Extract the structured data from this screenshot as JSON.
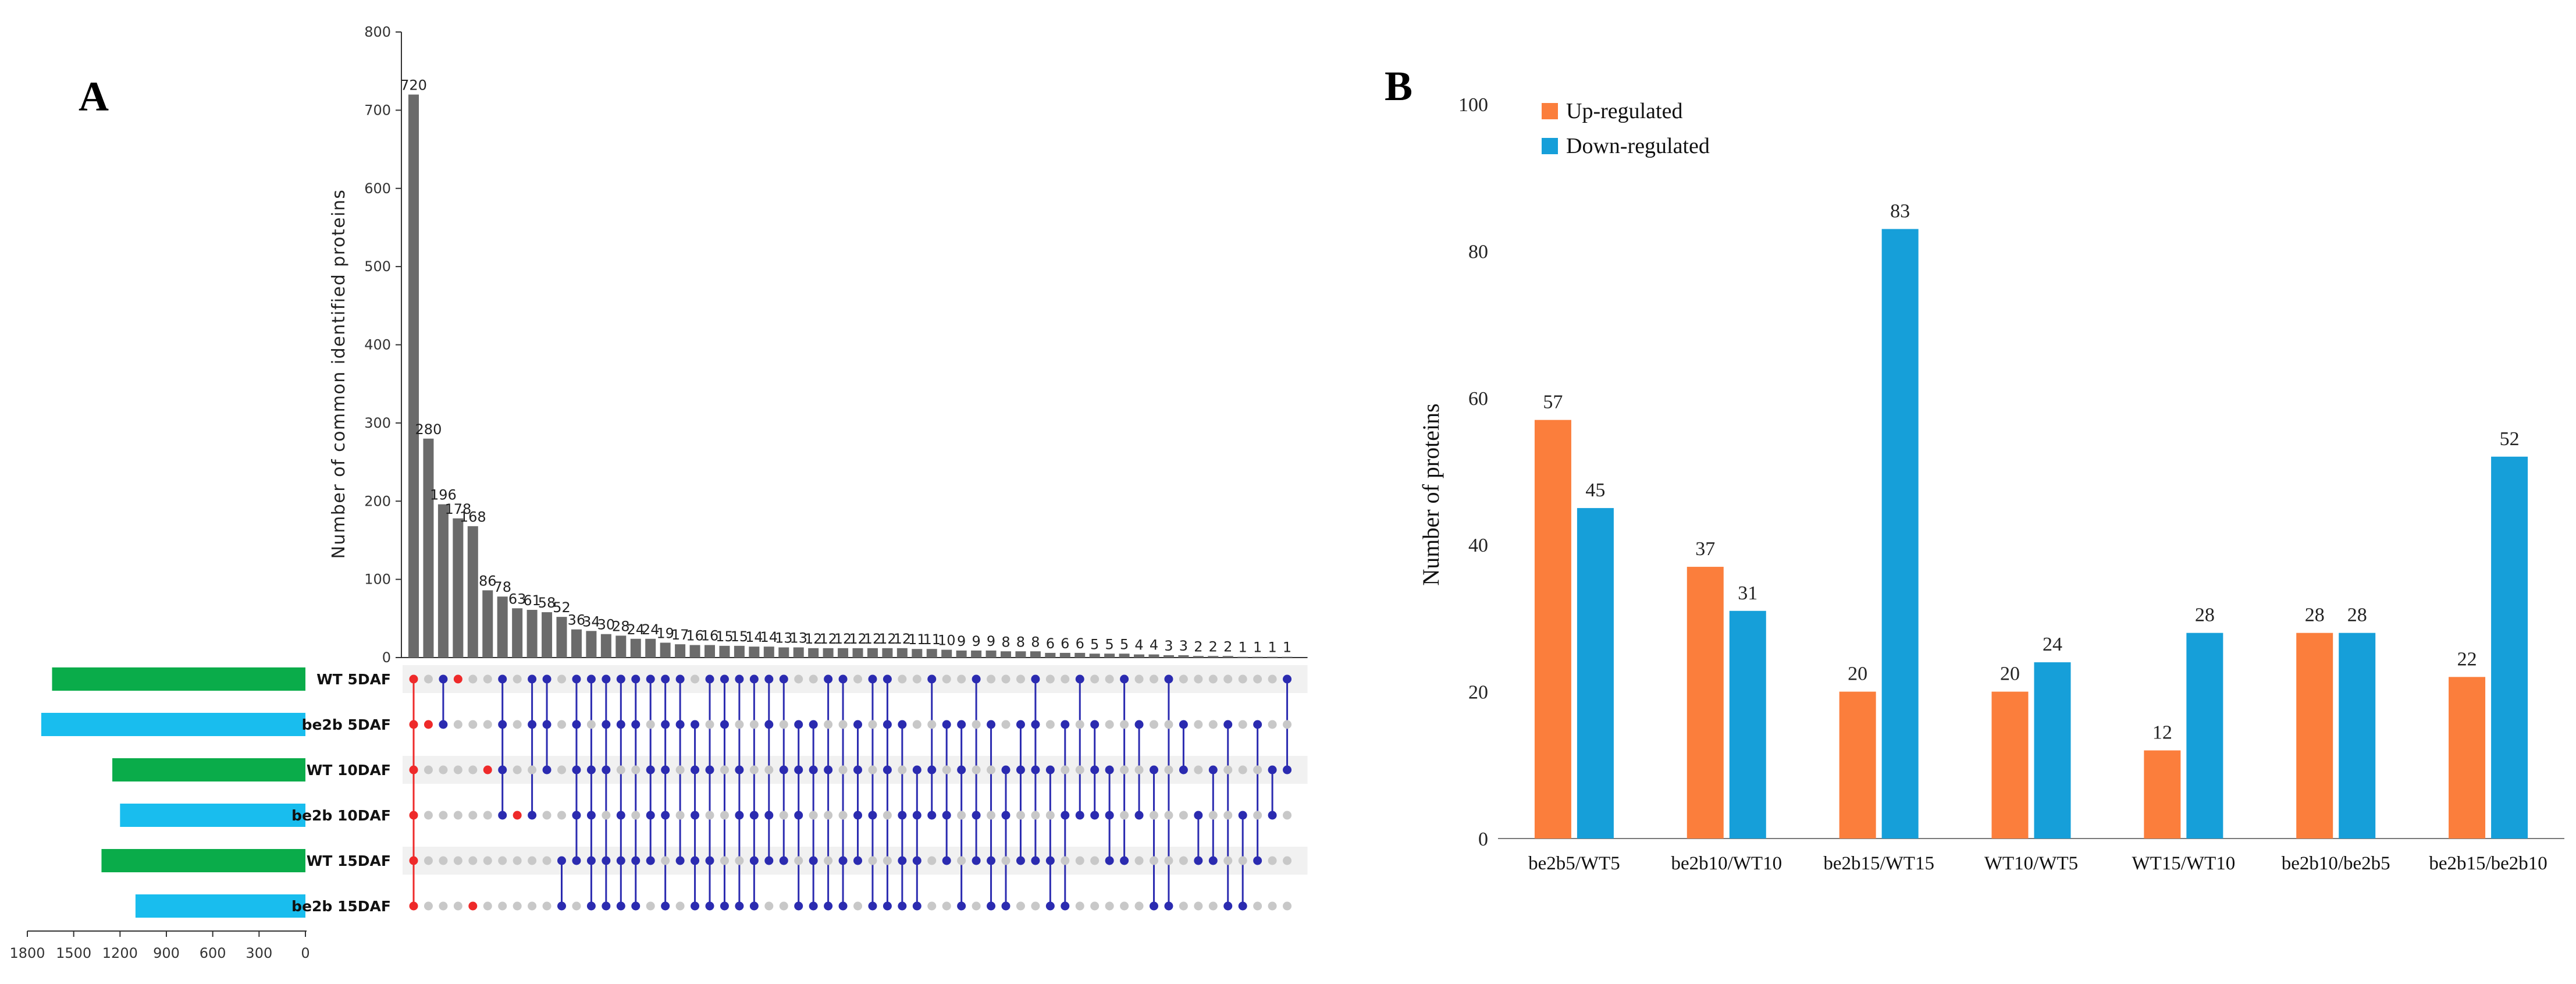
{
  "panel_a_label": "A",
  "panel_b_label": "B",
  "chart_data": [
    {
      "type": "upset",
      "panel": "A",
      "ylabel": "Number of common identified proteins",
      "ylim": [
        0,
        800
      ],
      "yticks": [
        0,
        100,
        200,
        300,
        400,
        500,
        600,
        700,
        800
      ],
      "set_size_ticks": [
        1800,
        1500,
        1200,
        900,
        600,
        300,
        0
      ],
      "set_size_xlim": [
        0,
        1800
      ],
      "sets": [
        {
          "name": "WT 5DAF",
          "size": 1640,
          "color": "#0aac4a"
        },
        {
          "name": "be2b 5DAF",
          "size": 1710,
          "color": "#19bdee"
        },
        {
          "name": "WT 10DAF",
          "size": 1250,
          "color": "#0aac4a"
        },
        {
          "name": "be2b 10DAF",
          "size": 1200,
          "color": "#19bdee"
        },
        {
          "name": "WT 15DAF",
          "size": 1320,
          "color": "#0aac4a"
        },
        {
          "name": "be2b 15DAF",
          "size": 1100,
          "color": "#19bdee"
        }
      ],
      "intersections": [
        {
          "value": 720,
          "label": "720",
          "sets": [
            0,
            1,
            2,
            3,
            4,
            5
          ]
        },
        {
          "value": 280,
          "label": "280",
          "sets": [
            1
          ]
        },
        {
          "value": 196,
          "label": "196",
          "sets": [
            0,
            1
          ]
        },
        {
          "value": 178,
          "label": "178",
          "sets": [
            0
          ]
        },
        {
          "value": 168,
          "label": "168",
          "sets": [
            5
          ]
        },
        {
          "value": 86,
          "label": "86",
          "sets": [
            2
          ]
        },
        {
          "value": 78,
          "label": "78",
          "sets": [
            0,
            1,
            2,
            3
          ]
        },
        {
          "value": 63,
          "label": "63",
          "sets": [
            3
          ]
        },
        {
          "value": 61,
          "label": "61",
          "sets": [
            0,
            1,
            3
          ]
        },
        {
          "value": 58,
          "label": "58",
          "sets": [
            0,
            1,
            2
          ]
        },
        {
          "value": 52,
          "label": "52",
          "sets": [
            4,
            5
          ]
        },
        {
          "value": 36,
          "label": "36",
          "sets": [
            0,
            1,
            2,
            3,
            4
          ]
        },
        {
          "value": 34,
          "label": "34",
          "sets": [
            0,
            2,
            3,
            4,
            5
          ]
        },
        {
          "value": 30,
          "label": "30",
          "sets": [
            0,
            1,
            2,
            4,
            5
          ]
        },
        {
          "value": 28,
          "label": "28",
          "sets": [
            0,
            1,
            3,
            4,
            5
          ]
        },
        {
          "value": 24,
          "label": "24",
          "sets": [
            0,
            1,
            4,
            5
          ]
        },
        {
          "value": 24,
          "label": "24",
          "sets": [
            0,
            2,
            3,
            4
          ]
        },
        {
          "value": 19,
          "label": "19",
          "sets": [
            0,
            1,
            2,
            3,
            5
          ]
        },
        {
          "value": 17,
          "label": "17",
          "sets": [
            0,
            1,
            4
          ]
        },
        {
          "value": 16,
          "label": "16",
          "sets": [
            1,
            2,
            3,
            4,
            5
          ]
        },
        {
          "value": 16,
          "label": "16",
          "sets": [
            0,
            2,
            4,
            5
          ]
        },
        {
          "value": 15,
          "label": "15",
          "sets": [
            0,
            1,
            5
          ]
        },
        {
          "value": 15,
          "label": "15",
          "sets": [
            0,
            2,
            3,
            5
          ]
        },
        {
          "value": 14,
          "label": "14",
          "sets": [
            0,
            3,
            4,
            5
          ]
        },
        {
          "value": 14,
          "label": "14",
          "sets": [
            0,
            1,
            3,
            4
          ]
        },
        {
          "value": 13,
          "label": "13",
          "sets": [
            0,
            2,
            4
          ]
        },
        {
          "value": 13,
          "label": "13",
          "sets": [
            1,
            2,
            3,
            5
          ]
        },
        {
          "value": 12,
          "label": "12",
          "sets": [
            1,
            2,
            4,
            5
          ]
        },
        {
          "value": 12,
          "label": "12",
          "sets": [
            0,
            2,
            5
          ]
        },
        {
          "value": 12,
          "label": "12",
          "sets": [
            0,
            4,
            5
          ]
        },
        {
          "value": 12,
          "label": "12",
          "sets": [
            1,
            2,
            3,
            4
          ]
        },
        {
          "value": 12,
          "label": "12",
          "sets": [
            0,
            3,
            5
          ]
        },
        {
          "value": 12,
          "label": "12",
          "sets": [
            0,
            1,
            2,
            5
          ]
        },
        {
          "value": 12,
          "label": "12",
          "sets": [
            1,
            3,
            4,
            5
          ]
        },
        {
          "value": 11,
          "label": "11",
          "sets": [
            2,
            3,
            4,
            5
          ]
        },
        {
          "value": 11,
          "label": "11",
          "sets": [
            0,
            2,
            3
          ]
        },
        {
          "value": 10,
          "label": "10",
          "sets": [
            1,
            3,
            4
          ]
        },
        {
          "value": 9,
          "label": "9",
          "sets": [
            1,
            2,
            5
          ]
        },
        {
          "value": 9,
          "label": "9",
          "sets": [
            0,
            3,
            4
          ]
        },
        {
          "value": 9,
          "label": "9",
          "sets": [
            1,
            4,
            5
          ]
        },
        {
          "value": 8,
          "label": "8",
          "sets": [
            2,
            3,
            5
          ]
        },
        {
          "value": 8,
          "label": "8",
          "sets": [
            1,
            2,
            4
          ]
        },
        {
          "value": 8,
          "label": "8",
          "sets": [
            0,
            1,
            2,
            4
          ]
        },
        {
          "value": 6,
          "label": "6",
          "sets": [
            2,
            4,
            5
          ]
        },
        {
          "value": 6,
          "label": "6",
          "sets": [
            1,
            3,
            5
          ]
        },
        {
          "value": 6,
          "label": "6",
          "sets": [
            0,
            3
          ]
        },
        {
          "value": 5,
          "label": "5",
          "sets": [
            1,
            2,
            3
          ]
        },
        {
          "value": 5,
          "label": "5",
          "sets": [
            2,
            3,
            4
          ]
        },
        {
          "value": 5,
          "label": "5",
          "sets": [
            0,
            4
          ]
        },
        {
          "value": 4,
          "label": "4",
          "sets": [
            1,
            3
          ]
        },
        {
          "value": 4,
          "label": "4",
          "sets": [
            2,
            5
          ]
        },
        {
          "value": 3,
          "label": "3",
          "sets": [
            0,
            5
          ]
        },
        {
          "value": 3,
          "label": "3",
          "sets": [
            1,
            2
          ]
        },
        {
          "value": 2,
          "label": "2",
          "sets": [
            3,
            4
          ]
        },
        {
          "value": 2,
          "label": "2",
          "sets": [
            2,
            4
          ]
        },
        {
          "value": 2,
          "label": "2",
          "sets": [
            1,
            5
          ]
        },
        {
          "value": 1,
          "label": "1",
          "sets": [
            3,
            5
          ]
        },
        {
          "value": 1,
          "label": "1",
          "sets": [
            1,
            4
          ]
        },
        {
          "value": 1,
          "label": "1",
          "sets": [
            2,
            3
          ]
        },
        {
          "value": 1,
          "label": "1",
          "sets": [
            0,
            2
          ]
        }
      ],
      "colors": {
        "bar": "#6b6b6b",
        "dot_active": "#2b2bb0",
        "dot_inactive": "#c8c8c8",
        "dot_single": "#ee2a2a",
        "row_stripe": "#f1f1f1"
      }
    },
    {
      "type": "bar",
      "panel": "B",
      "categories": [
        "be2b5/WT5",
        "be2b10/WT10",
        "be2b15/WT15",
        "WT10/WT5",
        "WT15/WT10",
        "be2b10/be2b5",
        "be2b15/be2b10"
      ],
      "series": [
        {
          "name": "Up-regulated",
          "color": "#fb7e3c",
          "values": [
            57,
            37,
            20,
            20,
            12,
            28,
            22
          ]
        },
        {
          "name": "Down-regulated",
          "color": "#169fd9",
          "values": [
            45,
            31,
            83,
            24,
            28,
            28,
            52
          ]
        }
      ],
      "ylabel": "Number of proteins",
      "xlabel": "",
      "ylim": [
        0,
        100
      ],
      "yticks": [
        0,
        20,
        40,
        60,
        80,
        100
      ],
      "legend_position": "top-left"
    }
  ]
}
